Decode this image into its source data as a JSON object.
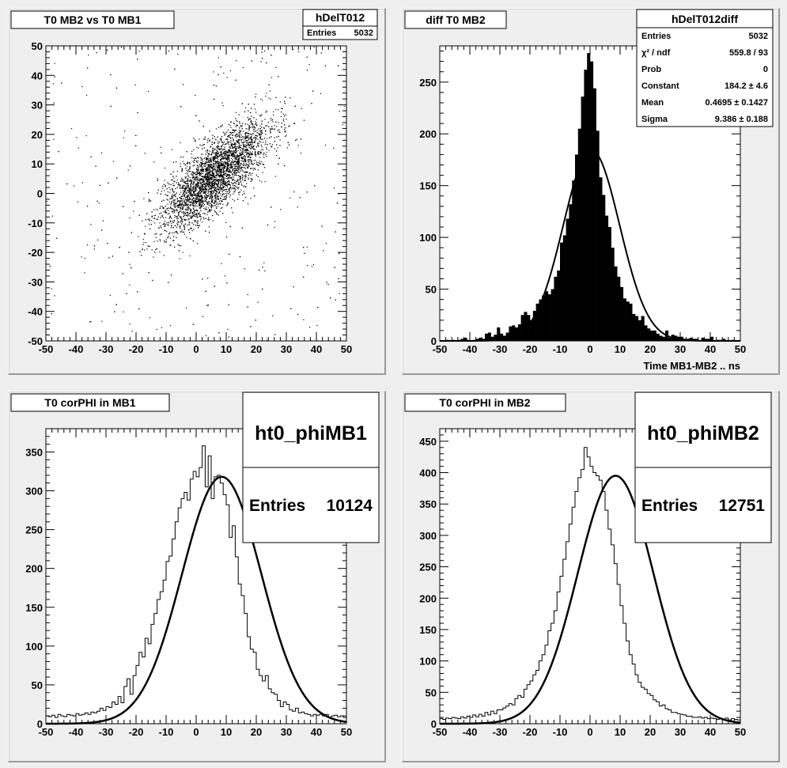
{
  "canvas_bg": "#efefef",
  "chart_data": [
    {
      "type": "scatter",
      "title": "T0 MB2 vs T0 MB1",
      "xlim": [
        -50,
        50
      ],
      "ylim": [
        -50,
        50
      ],
      "x_ticks": [
        "-50",
        "-40",
        "-30",
        "-20",
        "-10",
        "0",
        "10",
        "20",
        "30",
        "40",
        "50"
      ],
      "y_ticks": [
        "-50",
        "-40",
        "-30",
        "-20",
        "-10",
        "0",
        "10",
        "20",
        "30",
        "40",
        "50"
      ],
      "stats": {
        "name": "hDelT012",
        "rows": [
          {
            "label": "Entries",
            "value": "5032"
          }
        ]
      },
      "distribution": {
        "points": 5032,
        "mean_x": 6,
        "mean_y": 6,
        "sigma_x": 9,
        "sigma_y": 9,
        "correlation": 0.75,
        "background_fraction": 0.08
      }
    },
    {
      "type": "bar",
      "title": "diff T0 MB2",
      "xlabel": "Time MB1-MB2  ..  ns",
      "xlim": [
        -50,
        50
      ],
      "ylim": [
        0,
        285
      ],
      "x_ticks": [
        "-50",
        "-40",
        "-30",
        "-20",
        "-10",
        "0",
        "10",
        "20",
        "30",
        "40",
        "50"
      ],
      "y_ticks": [
        "0",
        "50",
        "100",
        "150",
        "200",
        "250"
      ],
      "bin_width": 1,
      "values": [
        0,
        0,
        1,
        0,
        1,
        0,
        1,
        2,
        3,
        1,
        0,
        1,
        2,
        3,
        2,
        7,
        8,
        4,
        6,
        13,
        7,
        5,
        8,
        14,
        15,
        13,
        16,
        25,
        28,
        25,
        20,
        29,
        36,
        40,
        44,
        48,
        45,
        50,
        62,
        68,
        95,
        102,
        118,
        132,
        155,
        180,
        205,
        236,
        262,
        278,
        270,
        244,
        203,
        158,
        141,
        121,
        110,
        90,
        72,
        62,
        52,
        41,
        38,
        36,
        26,
        24,
        20,
        24,
        15,
        12,
        10,
        10,
        7,
        5,
        4,
        10,
        3,
        6,
        5,
        4,
        4,
        2,
        2,
        3,
        2,
        2,
        0,
        3,
        2,
        2,
        4,
        0,
        1,
        1,
        2,
        0,
        0,
        1,
        0,
        0
      ],
      "fit": {
        "type": "gaussian",
        "constant": 184.2,
        "mean": 0.4695,
        "sigma": 9.386
      },
      "stats": {
        "name": "hDelT012diff",
        "rows": [
          {
            "label": "Entries",
            "value": "5032"
          },
          {
            "label": "χ² / ndf",
            "value": "559.8 / 93"
          },
          {
            "label": "Prob",
            "value": "0"
          },
          {
            "label": "Constant",
            "value": "184.2 ± 4.6"
          },
          {
            "label": "Mean",
            "value": "0.4695 ± 0.1427"
          },
          {
            "label": "Sigma",
            "value": "9.386 ± 0.188"
          }
        ]
      }
    },
    {
      "type": "line",
      "title": "T0 corPHI in MB1",
      "xlim": [
        -50,
        50
      ],
      "ylim": [
        0,
        380
      ],
      "x_ticks": [
        "-50",
        "-40",
        "-30",
        "-20",
        "-10",
        "0",
        "10",
        "20",
        "30",
        "40",
        "50"
      ],
      "y_ticks": [
        "0",
        "50",
        "100",
        "150",
        "200",
        "250",
        "300",
        "350"
      ],
      "bin_width": 1,
      "values": [
        10,
        9,
        11,
        8,
        12,
        10,
        9,
        12,
        11,
        10,
        13,
        11,
        12,
        14,
        12,
        15,
        14,
        16,
        20,
        17,
        22,
        21,
        28,
        25,
        35,
        27,
        48,
        58,
        38,
        62,
        75,
        92,
        86,
        110,
        103,
        128,
        142,
        160,
        170,
        185,
        209,
        216,
        238,
        260,
        278,
        290,
        298,
        288,
        315,
        325,
        318,
        330,
        358,
        305,
        345,
        290,
        318,
        320,
        310,
        295,
        282,
        240,
        255,
        215,
        180,
        165,
        142,
        112,
        96,
        92,
        70,
        62,
        55,
        62,
        45,
        40,
        38,
        30,
        22,
        28,
        25,
        18,
        16,
        20,
        14,
        15,
        13,
        12,
        10,
        12,
        11,
        12,
        10,
        12,
        8,
        10,
        11,
        9,
        10,
        8
      ],
      "fit": {
        "type": "gaussian",
        "constant": 318,
        "mean": 8.5,
        "sigma": 13.2
      },
      "stats": {
        "name": "ht0_phiMB1",
        "rows": [
          {
            "label": "Entries",
            "value": "10124"
          }
        ]
      }
    },
    {
      "type": "line",
      "title": "T0 corPHI in MB2",
      "xlim": [
        -50,
        50
      ],
      "ylim": [
        0,
        470
      ],
      "x_ticks": [
        "-50",
        "-40",
        "-30",
        "-20",
        "-10",
        "0",
        "10",
        "20",
        "30",
        "40",
        "50"
      ],
      "y_ticks": [
        "0",
        "50",
        "100",
        "150",
        "200",
        "250",
        "300",
        "350",
        "400",
        "450"
      ],
      "bin_width": 1,
      "values": [
        8,
        7,
        9,
        8,
        10,
        9,
        8,
        11,
        9,
        12,
        10,
        14,
        11,
        15,
        12,
        18,
        14,
        20,
        16,
        22,
        22,
        25,
        28,
        32,
        30,
        40,
        45,
        42,
        55,
        62,
        68,
        78,
        85,
        100,
        110,
        125,
        148,
        160,
        180,
        210,
        235,
        262,
        290,
        318,
        345,
        370,
        392,
        405,
        440,
        425,
        410,
        400,
        395,
        388,
        370,
        340,
        310,
        285,
        255,
        222,
        188,
        160,
        132,
        110,
        95,
        78,
        66,
        58,
        55,
        48,
        45,
        38,
        35,
        28,
        30,
        24,
        22,
        18,
        18,
        16,
        15,
        14,
        12,
        12,
        10,
        10,
        11,
        9,
        10,
        8,
        9,
        8,
        7,
        8,
        7,
        9,
        6,
        8,
        7,
        6
      ],
      "fit": {
        "type": "gaussian",
        "constant": 395,
        "mean": 8.5,
        "sigma": 12.6
      },
      "stats": {
        "name": "ht0_phiMB2",
        "rows": [
          {
            "label": "Entries",
            "value": "12751"
          }
        ]
      }
    }
  ]
}
